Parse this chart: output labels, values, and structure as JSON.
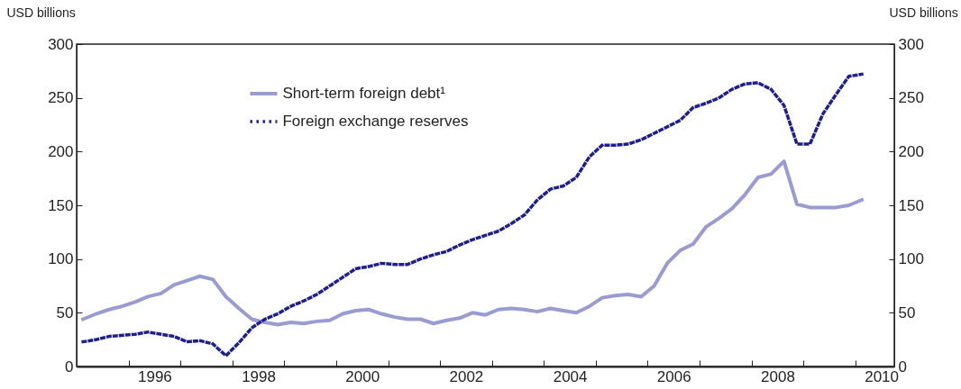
{
  "chart_data": {
    "type": "line",
    "ylabel": "USD billions",
    "y2label": "USD billions",
    "x": [
      1995.125,
      1995.375,
      1995.625,
      1995.875,
      1996.125,
      1996.375,
      1996.625,
      1996.875,
      1997.125,
      1997.375,
      1997.625,
      1997.875,
      1998.125,
      1998.375,
      1998.625,
      1998.875,
      1999.125,
      1999.375,
      1999.625,
      1999.875,
      2000.125,
      2000.375,
      2000.625,
      2000.875,
      2001.125,
      2001.375,
      2001.625,
      2001.875,
      2002.125,
      2002.375,
      2002.625,
      2002.875,
      2003.125,
      2003.375,
      2003.625,
      2003.875,
      2004.125,
      2004.375,
      2004.625,
      2004.875,
      2005.125,
      2005.375,
      2005.625,
      2005.875,
      2006.125,
      2006.375,
      2006.625,
      2006.875,
      2007.125,
      2007.375,
      2007.625,
      2007.875,
      2008.125,
      2008.375,
      2008.625,
      2008.875,
      2009.125,
      2009.375,
      2009.625,
      2009.875,
      2010.125
    ],
    "series": [
      {
        "name": "Short-term foreign debt¹",
        "color": "#9b9bd4",
        "line_style": "solid",
        "values": [
          44,
          49,
          53,
          56,
          60,
          65,
          68,
          76,
          80,
          84,
          81,
          65,
          54,
          44,
          41,
          39,
          41,
          40,
          42,
          43,
          49,
          52,
          53,
          49,
          46,
          44,
          44,
          40,
          43,
          45,
          50,
          48,
          53,
          54,
          53,
          51,
          54,
          52,
          50,
          56,
          64,
          66,
          67,
          65,
          75,
          96,
          108,
          114,
          130,
          138,
          147,
          160,
          176,
          179,
          191,
          151,
          148,
          148,
          148,
          150,
          155
        ]
      },
      {
        "name": "Foreign exchange reserves",
        "color": "#1f1f8c",
        "line_style": "dotted",
        "values": [
          23,
          25,
          28,
          29,
          30,
          32,
          30,
          28,
          23,
          24,
          21,
          10,
          22,
          36,
          44,
          49,
          56,
          61,
          67,
          75,
          83,
          91,
          93,
          96,
          95,
          95,
          100,
          104,
          107,
          113,
          118,
          122,
          126,
          133,
          141,
          155,
          165,
          168,
          176,
          195,
          206,
          206,
          207,
          211,
          217,
          223,
          229,
          241,
          245,
          250,
          258,
          263,
          264,
          258,
          243,
          207,
          207,
          235,
          253,
          270,
          272
        ]
      }
    ],
    "xlim": [
      1995,
      2010.75
    ],
    "xticks": [
      {
        "value": 1996,
        "label": null
      },
      {
        "value": 1996.5,
        "label": "1996"
      },
      {
        "value": 1997,
        "label": null
      },
      {
        "value": 1998,
        "label": null
      },
      {
        "value": 1998.5,
        "label": "1998"
      },
      {
        "value": 1999,
        "label": null
      },
      {
        "value": 2000,
        "label": null
      },
      {
        "value": 2000.5,
        "label": "2000"
      },
      {
        "value": 2001,
        "label": null
      },
      {
        "value": 2002,
        "label": null
      },
      {
        "value": 2002.5,
        "label": "2002"
      },
      {
        "value": 2003,
        "label": null
      },
      {
        "value": 2004,
        "label": null
      },
      {
        "value": 2004.5,
        "label": "2004"
      },
      {
        "value": 2005,
        "label": null
      },
      {
        "value": 2006,
        "label": null
      },
      {
        "value": 2006.5,
        "label": "2006"
      },
      {
        "value": 2007,
        "label": null
      },
      {
        "value": 2008,
        "label": null
      },
      {
        "value": 2008.5,
        "label": "2008"
      },
      {
        "value": 2009,
        "label": null
      },
      {
        "value": 2010,
        "label": null
      },
      {
        "value": 2010.5,
        "label": "2010"
      }
    ],
    "ylim": [
      0,
      300
    ],
    "yticks": [
      0,
      50,
      100,
      150,
      200,
      250,
      300
    ],
    "y2lim": [
      0,
      300
    ],
    "y2ticks": [
      0,
      50,
      100,
      150,
      200,
      250,
      300
    ],
    "legend": "top",
    "grid": false
  }
}
